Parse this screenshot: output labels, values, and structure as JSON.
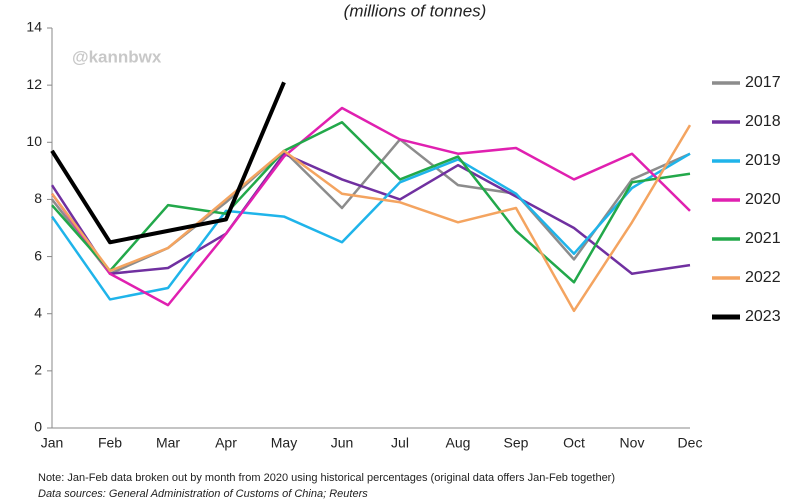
{
  "chart_data": {
    "type": "line",
    "subtitle": "(millions of tonnes)",
    "watermark": "@kannbwx",
    "note": "Note: Jan-Feb data broken out by month from 2020 using historical percentages (original data offers Jan-Feb together)",
    "source": "Data sources: General Administration of Customs of China; Reuters",
    "categories": [
      "Jan",
      "Feb",
      "Mar",
      "Apr",
      "May",
      "Jun",
      "Jul",
      "Aug",
      "Sep",
      "Oct",
      "Nov",
      "Dec"
    ],
    "series": [
      {
        "name": "2017",
        "color": "#8c8c8c",
        "values": [
          8.0,
          5.4,
          6.3,
          7.9,
          9.7,
          7.7,
          10.1,
          8.5,
          8.2,
          5.9,
          8.7,
          9.6
        ]
      },
      {
        "name": "2018",
        "color": "#7030a0",
        "values": [
          8.5,
          5.4,
          5.6,
          6.8,
          9.6,
          8.7,
          8.0,
          9.2,
          8.1,
          7.0,
          5.4,
          5.7
        ]
      },
      {
        "name": "2019",
        "color": "#1fb4ea",
        "values": [
          7.4,
          4.5,
          4.9,
          7.6,
          7.4,
          6.5,
          8.6,
          9.4,
          8.2,
          6.1,
          8.4,
          9.6
        ]
      },
      {
        "name": "2020",
        "color": "#e020b0",
        "values": [
          8.2,
          5.4,
          4.3,
          6.8,
          9.5,
          11.2,
          10.1,
          9.6,
          9.8,
          8.7,
          9.6,
          7.6
        ]
      },
      {
        "name": "2021",
        "color": "#22a84a",
        "values": [
          7.8,
          5.5,
          7.8,
          7.5,
          9.7,
          10.7,
          8.7,
          9.5,
          6.9,
          5.1,
          8.6,
          8.9
        ]
      },
      {
        "name": "2022",
        "color": "#f4a460",
        "values": [
          8.2,
          5.5,
          6.3,
          8.0,
          9.7,
          8.2,
          7.9,
          7.2,
          7.7,
          4.1,
          7.2,
          10.6
        ]
      },
      {
        "name": "2023",
        "color": "#000000",
        "values": [
          9.7,
          6.5,
          6.9,
          7.3,
          12.1,
          null,
          null,
          null,
          null,
          null,
          null,
          null
        ]
      }
    ],
    "ylim": [
      0,
      14
    ],
    "yticks": [
      0,
      2,
      4,
      6,
      8,
      10,
      12,
      14
    ],
    "grid": false,
    "legend": "right"
  }
}
